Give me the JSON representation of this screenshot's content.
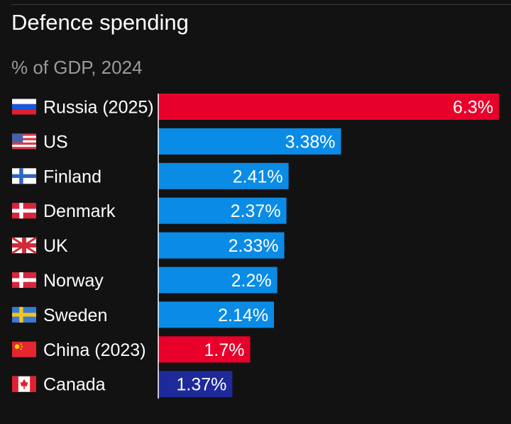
{
  "title": "Defence spending",
  "subtitle": "% of GDP, 2024",
  "colors": {
    "background": "#121212",
    "red": "#e8002b",
    "blue": "#0a8be6",
    "navy": "#1e2a9a"
  },
  "chart_data": {
    "type": "bar",
    "orientation": "horizontal",
    "title": "Defence spending",
    "subtitle": "% of GDP, 2024",
    "categories": [
      "Russia (2025)",
      "US",
      "Finland",
      "Denmark",
      "UK",
      "Norway",
      "Sweden",
      "China (2023)",
      "Canada"
    ],
    "values": [
      6.3,
      3.38,
      2.41,
      2.37,
      2.33,
      2.2,
      2.14,
      1.7,
      1.37
    ],
    "value_labels": [
      "6.3%",
      "3.38%",
      "2.41%",
      "2.37%",
      "2.33%",
      "2.2%",
      "2.14%",
      "1.7%",
      "1.37%"
    ],
    "bar_colors": [
      "#e8002b",
      "#0a8be6",
      "#0a8be6",
      "#0a8be6",
      "#0a8be6",
      "#0a8be6",
      "#0a8be6",
      "#e8002b",
      "#1e2a9a"
    ],
    "flags": [
      "russia-flag-icon",
      "us-flag-icon",
      "finland-flag-icon",
      "denmark-flag-icon",
      "uk-flag-icon",
      "norway-flag-icon",
      "sweden-flag-icon",
      "china-flag-icon",
      "canada-flag-icon"
    ],
    "xlim": [
      0,
      6.3
    ],
    "grid": false,
    "legend": "none"
  }
}
